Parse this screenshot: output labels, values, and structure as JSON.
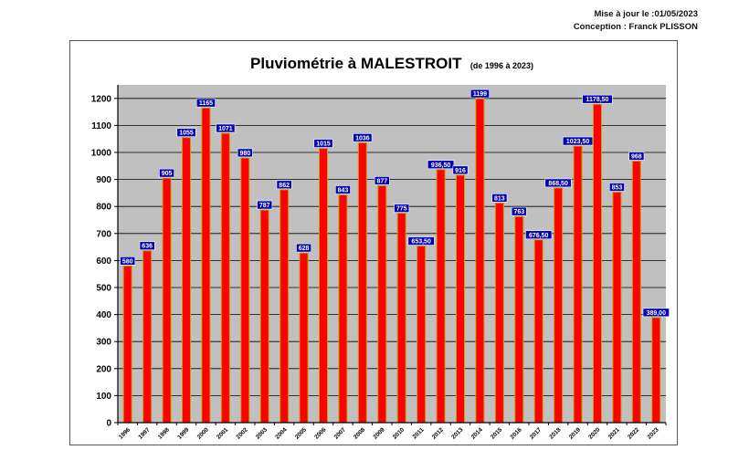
{
  "header": {
    "update_line": "Mise à jour le :01/05/2023",
    "design_line": "Conception : Franck PLISSON"
  },
  "colors": {
    "bar_fill": "#ff0000",
    "bar_stroke": "#c8a000",
    "plot_bg": "#c0c0c0",
    "label_bg": "#0000b4"
  },
  "chart_data": {
    "type": "bar",
    "title": "Pluviométrie à MALESTROIT",
    "subtitle": "(de 1996 à 2023)",
    "xlabel": "",
    "ylabel": "",
    "ylim": [
      0,
      1250
    ],
    "yticks": [
      0,
      100,
      200,
      300,
      400,
      500,
      600,
      700,
      800,
      900,
      1000,
      1100,
      1200
    ],
    "grid": true,
    "legend": "none",
    "categories": [
      "1996",
      "1997",
      "1998",
      "1999",
      "2000",
      "2001",
      "2002",
      "2003",
      "2004",
      "2005",
      "2006",
      "2007",
      "2008",
      "2009",
      "2010",
      "2011",
      "2012",
      "2013",
      "2014",
      "2015",
      "2016",
      "2017",
      "2018",
      "2019",
      "2020",
      "2021",
      "2022",
      "2023"
    ],
    "values": [
      580,
      636,
      905,
      1055,
      1165,
      1071,
      980,
      787,
      862,
      628,
      1015,
      843,
      1036,
      877,
      775,
      653.5,
      936.5,
      916,
      1199,
      813,
      763,
      676.5,
      868.5,
      1023.5,
      1178.5,
      853,
      968,
      389
    ],
    "data_labels": [
      "580",
      "636",
      "905",
      "1055",
      "1165",
      "1071",
      "980",
      "787",
      "862",
      "628",
      "1015",
      "843",
      "1036",
      "877",
      "775",
      "653,50",
      "936,50",
      "916",
      "1199",
      "813",
      "763",
      "676,50",
      "868,50",
      "1023,50",
      "1178,50",
      "853",
      "968",
      "389,00"
    ]
  }
}
